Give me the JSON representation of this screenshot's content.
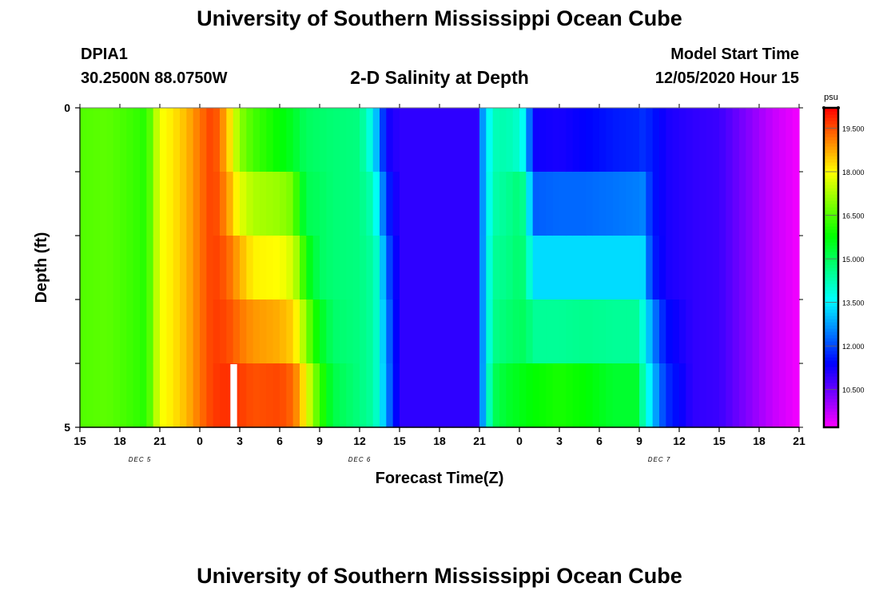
{
  "header": {
    "title": "University of Southern Mississippi Ocean Cube",
    "station_id": "DPIA1",
    "coordinates": "30.2500N 88.0750W",
    "subtitle": "2-D Salinity at Depth",
    "model_start_label": "Model Start Time",
    "model_start_value": "12/05/2020 Hour 15"
  },
  "footer": {
    "title": "University of Southern Mississippi Ocean Cube"
  },
  "colorbar": {
    "unit": "psu",
    "min": 9.2,
    "max": 20.2,
    "ticks": [
      10.5,
      12.0,
      13.5,
      15.0,
      16.5,
      18.0,
      19.5
    ],
    "tick_labels": [
      "10.500",
      "12.000",
      "13.500",
      "15.000",
      "16.500",
      "18.000",
      "19.500"
    ]
  },
  "chart_data": {
    "type": "heatmap",
    "title": "2-D Salinity at Depth",
    "xlabel": "Forecast Time(Z)",
    "ylabel": "Depth (ft)",
    "xlim": [
      0,
      54
    ],
    "ylim": [
      0,
      5
    ],
    "x_tick_hours": [
      0,
      3,
      6,
      9,
      12,
      15,
      18,
      21,
      24,
      27,
      30,
      33,
      36,
      39,
      42,
      45,
      48,
      51,
      54
    ],
    "x_tick_labels": [
      "15",
      "18",
      "21",
      "0",
      "3",
      "6",
      "9",
      "12",
      "15",
      "18",
      "21",
      "0",
      "3",
      "6",
      "9",
      "12",
      "15",
      "18",
      "21"
    ],
    "y_ticks": [
      0,
      1,
      2,
      3,
      4,
      5
    ],
    "y_tick_labels": [
      "0",
      "",
      "",
      "",
      "",
      "5"
    ],
    "date_annotations": [
      {
        "text": "DEC 5",
        "hour": 4.5
      },
      {
        "text": "DEC 6",
        "hour": 21
      },
      {
        "text": "DEC 7",
        "hour": 43.5
      }
    ],
    "depth_layers": [
      0,
      1,
      2,
      3,
      4
    ],
    "columns": [
      {
        "hour": 0,
        "values": [
          16.5,
          16.5,
          16.5,
          16.5,
          16.5
        ]
      },
      {
        "hour": 2,
        "values": [
          16.6,
          16.6,
          16.6,
          16.6,
          16.6
        ]
      },
      {
        "hour": 4,
        "values": [
          16.3,
          16.3,
          16.3,
          16.3,
          16.3
        ]
      },
      {
        "hour": 5,
        "values": [
          16.1,
          16.1,
          16.1,
          16.1,
          16.1
        ]
      },
      {
        "hour": 5.5,
        "values": [
          17.0,
          17.0,
          17.0,
          17.0,
          17.0
        ]
      },
      {
        "hour": 6,
        "values": [
          17.9,
          17.9,
          17.9,
          17.9,
          17.9
        ]
      },
      {
        "hour": 7,
        "values": [
          18.2,
          18.2,
          18.2,
          18.2,
          18.2
        ]
      },
      {
        "hour": 8,
        "values": [
          18.6,
          18.6,
          18.6,
          18.6,
          18.6
        ]
      },
      {
        "hour": 9,
        "values": [
          19.2,
          19.2,
          19.2,
          19.2,
          19.2
        ]
      },
      {
        "hour": 10,
        "values": [
          19.7,
          19.7,
          19.7,
          19.7,
          19.7
        ]
      },
      {
        "hour": 11,
        "values": [
          18.7,
          19.0,
          19.4,
          19.6,
          19.8
        ]
      },
      {
        "hour": 12,
        "values": [
          17.0,
          17.8,
          18.7,
          19.2,
          19.7
        ]
      },
      {
        "hour": 13,
        "values": [
          16.4,
          17.3,
          18.1,
          18.9,
          19.5
        ]
      },
      {
        "hour": 15,
        "values": [
          15.8,
          17.1,
          18.0,
          18.7,
          19.6
        ]
      },
      {
        "hour": 16,
        "values": [
          15.5,
          16.8,
          17.6,
          18.4,
          19.3
        ]
      },
      {
        "hour": 16.5,
        "values": [
          15.2,
          15.8,
          16.9,
          17.8,
          18.7
        ]
      },
      {
        "hour": 17,
        "values": [
          15.0,
          15.1,
          15.8,
          16.9,
          17.9
        ]
      },
      {
        "hour": 18,
        "values": [
          14.9,
          15.0,
          15.0,
          15.6,
          16.3
        ]
      },
      {
        "hour": 19,
        "values": [
          14.8,
          14.8,
          14.8,
          14.9,
          15.2
        ]
      },
      {
        "hour": 21,
        "values": [
          14.7,
          14.7,
          14.7,
          14.7,
          14.7
        ]
      },
      {
        "hour": 22,
        "values": [
          13.6,
          14.2,
          14.4,
          14.4,
          14.4
        ]
      },
      {
        "hour": 22.5,
        "values": [
          12.5,
          13.2,
          13.8,
          13.8,
          13.8
        ]
      },
      {
        "hour": 23,
        "values": [
          11.3,
          11.8,
          12.3,
          12.6,
          12.7
        ]
      },
      {
        "hour": 24,
        "values": [
          11.0,
          11.0,
          11.0,
          11.0,
          11.0
        ]
      },
      {
        "hour": 30,
        "values": [
          11.0,
          11.0,
          11.0,
          11.0,
          11.0
        ]
      },
      {
        "hour": 30.2,
        "values": [
          12.6,
          12.6,
          12.6,
          12.6,
          12.6
        ]
      },
      {
        "hour": 31,
        "values": [
          14.2,
          14.3,
          14.5,
          14.6,
          15.0
        ]
      },
      {
        "hour": 32,
        "values": [
          14.3,
          14.5,
          14.6,
          14.8,
          15.4
        ]
      },
      {
        "hour": 33,
        "values": [
          14.0,
          14.8,
          14.9,
          15.0,
          15.6
        ]
      },
      {
        "hour": 33.5,
        "values": [
          13.4,
          14.4,
          14.7,
          15.0,
          15.7
        ]
      },
      {
        "hour": 34,
        "values": [
          11.3,
          12.2,
          13.3,
          14.5,
          15.8
        ]
      },
      {
        "hour": 36,
        "values": [
          11.2,
          12.3,
          13.3,
          14.5,
          16.0
        ]
      },
      {
        "hour": 38,
        "values": [
          11.4,
          12.3,
          13.3,
          14.6,
          15.8
        ]
      },
      {
        "hour": 40,
        "values": [
          11.6,
          12.4,
          13.3,
          14.5,
          15.4
        ]
      },
      {
        "hour": 42,
        "values": [
          11.7,
          12.5,
          13.3,
          14.5,
          15.4
        ]
      },
      {
        "hour": 42.2,
        "values": [
          11.8,
          12.6,
          13.4,
          14.0,
          14.5
        ]
      },
      {
        "hour": 43,
        "values": [
          11.6,
          11.6,
          11.7,
          12.6,
          13.1
        ]
      },
      {
        "hour": 44,
        "values": [
          11.2,
          11.2,
          11.2,
          11.5,
          11.8
        ]
      },
      {
        "hour": 46,
        "values": [
          11.0,
          11.0,
          11.0,
          11.0,
          11.0
        ]
      },
      {
        "hour": 48,
        "values": [
          10.9,
          10.9,
          10.9,
          10.9,
          10.9
        ]
      },
      {
        "hour": 50,
        "values": [
          10.3,
          10.3,
          10.3,
          10.3,
          10.3
        ]
      },
      {
        "hour": 52,
        "values": [
          9.7,
          9.7,
          9.7,
          9.7,
          9.7
        ]
      },
      {
        "hour": 54,
        "values": [
          9.3,
          9.3,
          9.3,
          9.3,
          9.3
        ]
      }
    ],
    "missing_cells": [
      {
        "hour_start": 11.3,
        "hour_end": 11.8,
        "depth_layer": 4
      }
    ]
  },
  "colors": {
    "background": "#ffffff",
    "axis": "#000000",
    "missing": "#ffffff"
  }
}
